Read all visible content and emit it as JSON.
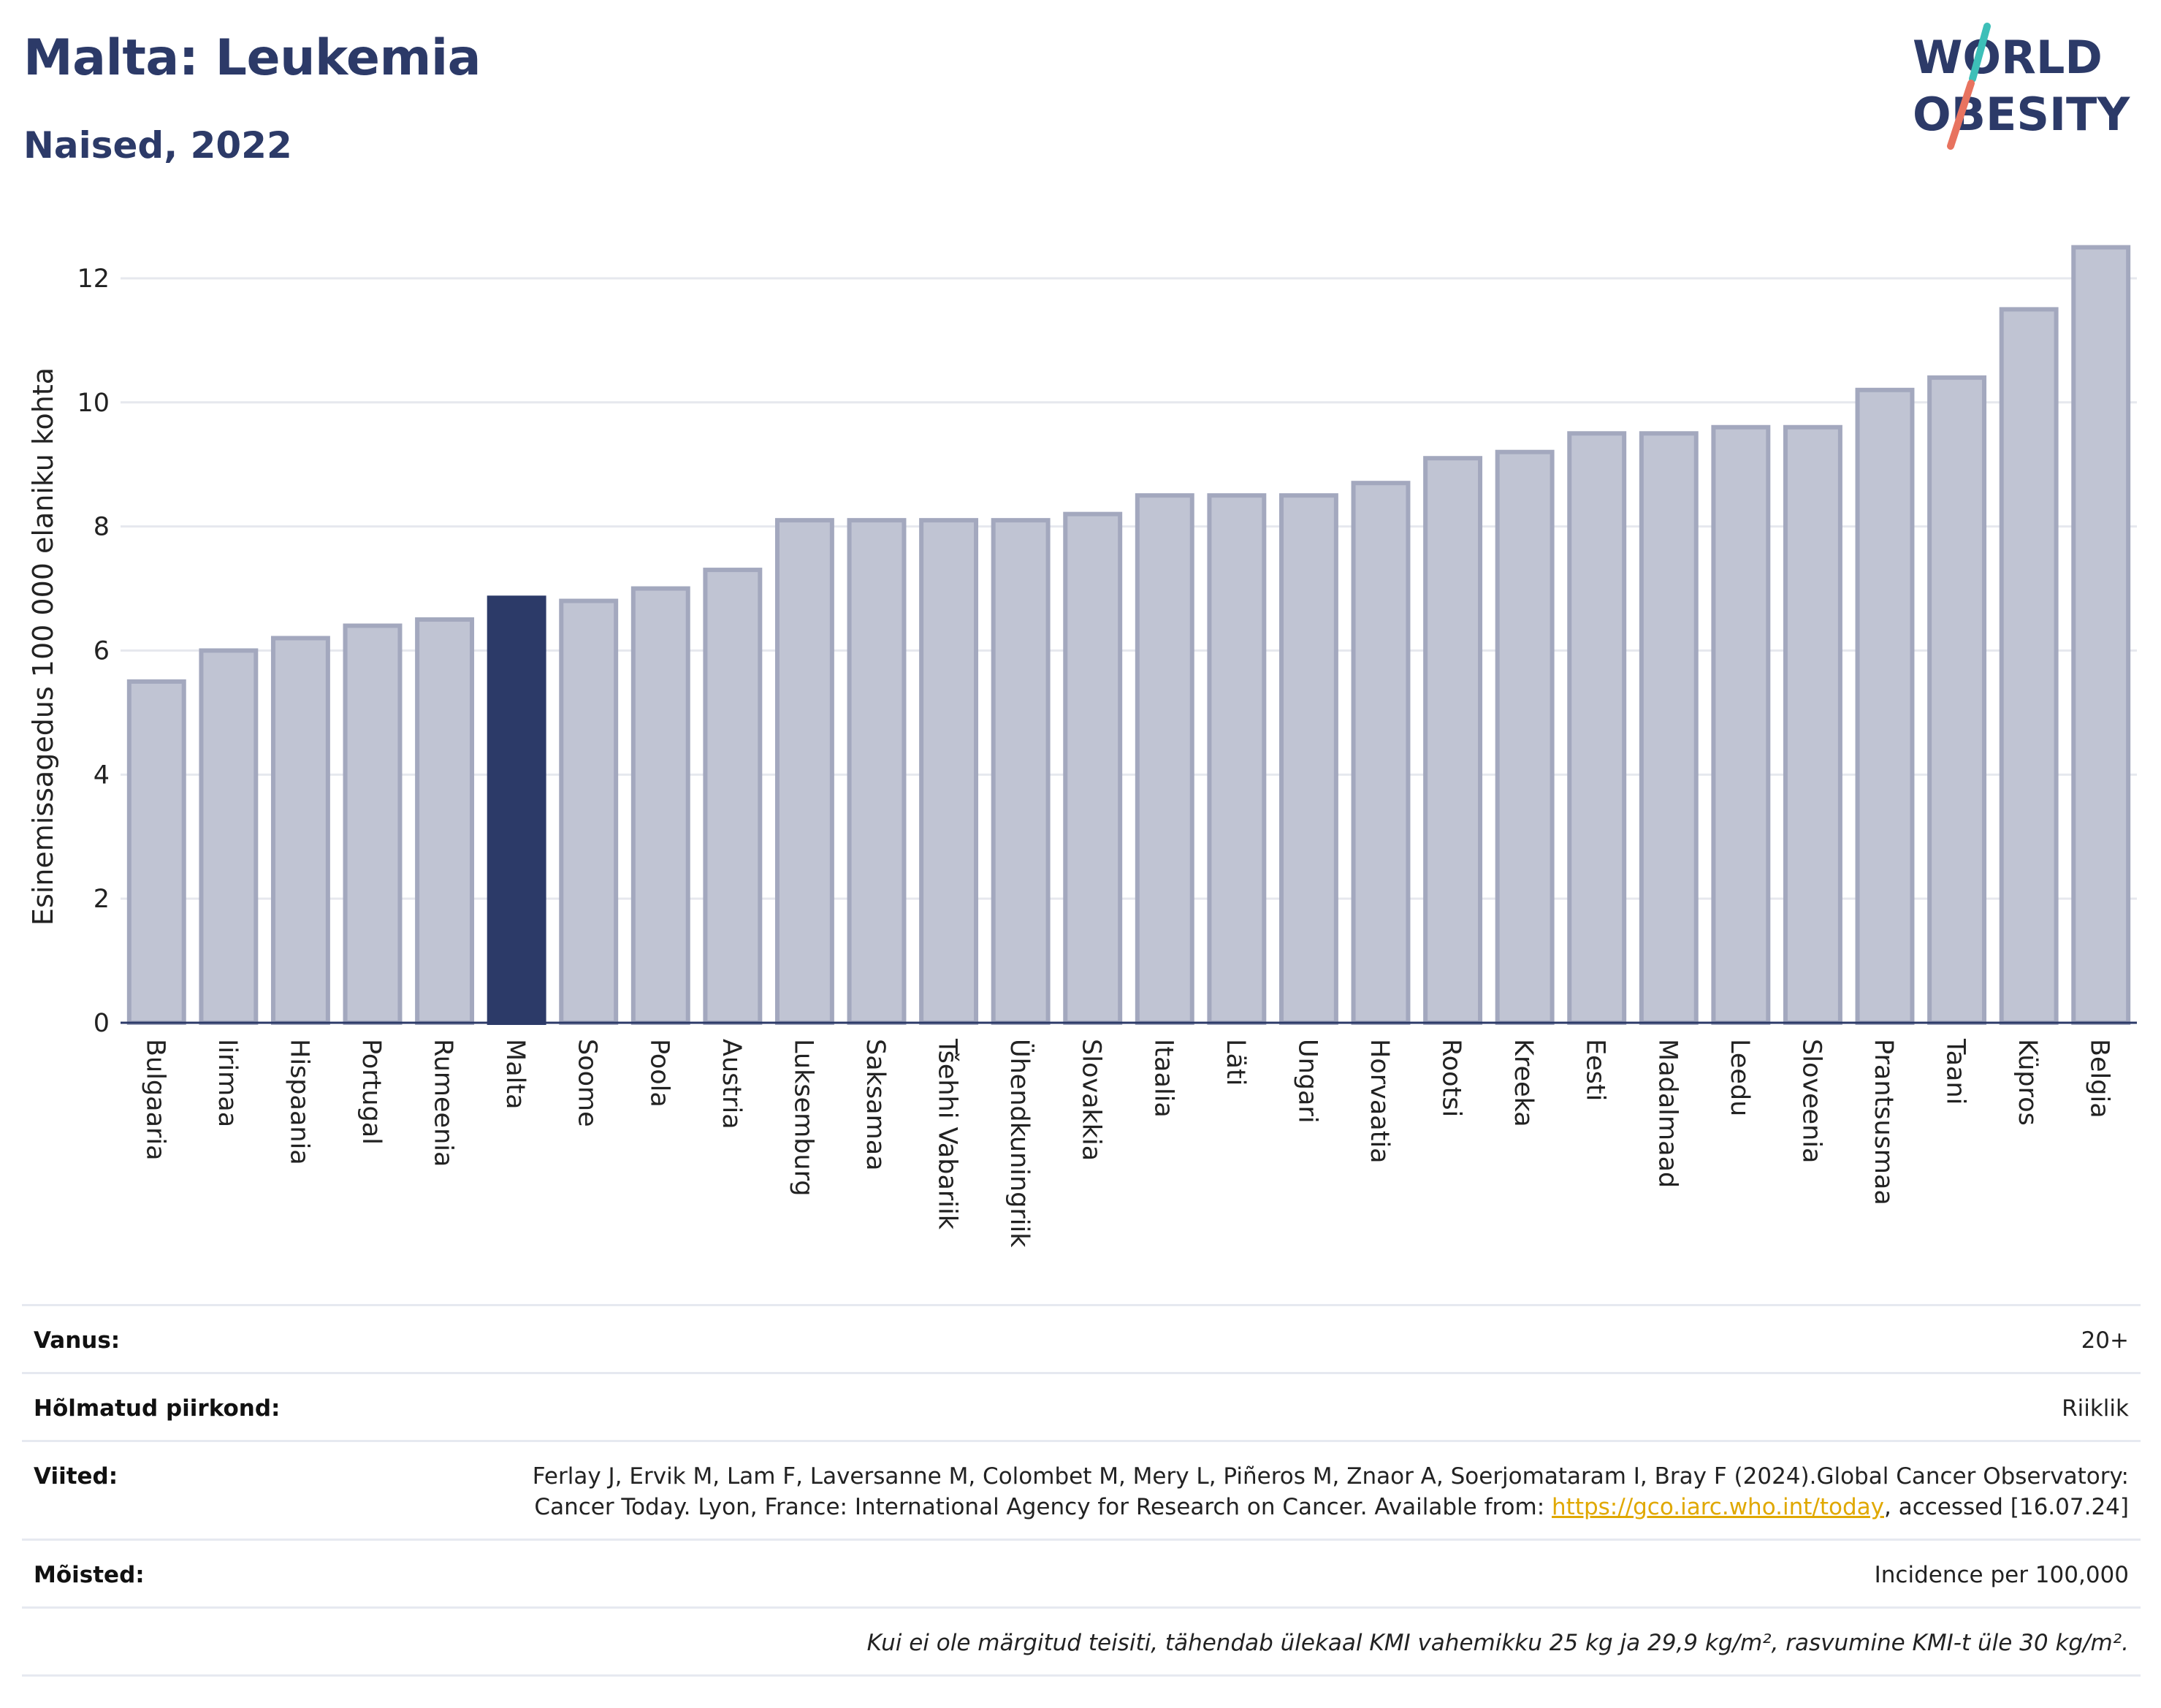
{
  "header": {
    "title": "Malta: Leukemia",
    "subtitle": "Naised, 2022"
  },
  "logo": {
    "line1": "WORLD",
    "line2": "OBESITY",
    "brand_color": "#2c3a68",
    "accent_teal": "#3dbfb8",
    "accent_coral": "#e8735f"
  },
  "colors": {
    "bar": "#c0c4d3",
    "bar_border": "#a3a8be",
    "highlight": "#2c3a68",
    "grid": "#e6e8ee",
    "axis": "#2c3a68"
  },
  "chart_data": {
    "type": "bar",
    "ylabel": "Esinemissagedus 100 000 elaniku kohta",
    "ylim": [
      0,
      12.6
    ],
    "yticks": [
      0,
      2,
      4,
      6,
      8,
      10,
      12
    ],
    "grid": true,
    "highlight": "Malta",
    "categories": [
      "Bulgaaria",
      "Iirimaa",
      "Hispaania",
      "Portugal",
      "Rumeenia",
      "Malta",
      "Soome",
      "Poola",
      "Austria",
      "Luksemburg",
      "Saksamaa",
      "Tšehhi Vabariik",
      "Ühendkuningriik",
      "Slovakkia",
      "Itaalia",
      "Läti",
      "Ungari",
      "Horvaatia",
      "Rootsi",
      "Kreeka",
      "Eesti",
      "Madalmaad",
      "Leedu",
      "Sloveenia",
      "Prantsusmaa",
      "Taani",
      "Küpros",
      "Belgia"
    ],
    "values": [
      5.5,
      6.0,
      6.2,
      6.4,
      6.5,
      6.85,
      6.8,
      7.0,
      7.3,
      8.1,
      8.1,
      8.1,
      8.1,
      8.2,
      8.5,
      8.5,
      8.5,
      8.7,
      9.1,
      9.2,
      9.5,
      9.5,
      9.6,
      9.6,
      10.2,
      10.4,
      11.5,
      12.5
    ]
  },
  "meta": {
    "age_label": "Vanus:",
    "age_value": "20+",
    "region_label": "Hõlmatud piirkond:",
    "region_value": "Riiklik",
    "refs_label": "Viited:",
    "refs_text_1": "Ferlay J, Ervik M, Lam F, Laversanne M, Colombet M, Mery L, Piñeros M, Znaor A, Soerjomataram I, Bray F (2024).Global Cancer Observatory: Cancer Today. Lyon, France: International Agency for Research on Cancer. Available from: ",
    "refs_link": "https://gco.iarc.who.int/today",
    "refs_text_2": ", accessed [16.07.24]",
    "defs_label": "Mõisted:",
    "defs_value": "Incidence per 100,000",
    "note": "Kui ei ole märgitud teisiti, tähendab ülekaal KMI vahemikku 25 kg ja 29,9 kg/m², rasvumine KMI-t üle 30 kg/m²."
  }
}
